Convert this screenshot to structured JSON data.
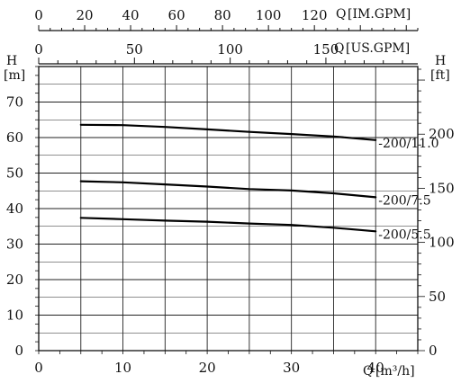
{
  "chart_data": {
    "type": "line",
    "x_axis": {
      "label": "Q",
      "unit": "[m³/h]",
      "range": [
        0,
        45
      ],
      "ticks": [
        "0",
        "10",
        "20",
        "30",
        "40"
      ],
      "tick_values": [
        0,
        10,
        20,
        30,
        40
      ]
    },
    "y_axis_left": {
      "label": "H",
      "unit": "[m]",
      "range": [
        0,
        80
      ],
      "ticks": [
        "0",
        "10",
        "20",
        "30",
        "40",
        "50",
        "60",
        "70"
      ],
      "tick_values": [
        0,
        10,
        20,
        30,
        40,
        50,
        60,
        70
      ]
    },
    "y_axis_right": {
      "label": "H",
      "unit": "[ft]",
      "range": [
        0,
        262.5
      ],
      "ticks": [
        "0",
        "50",
        "100",
        "150",
        "200"
      ],
      "tick_values": [
        0,
        50,
        100,
        150,
        200
      ]
    },
    "top_axis_im": {
      "label": "Q",
      "unit": "[IM.GPM]",
      "range": [
        0,
        165
      ],
      "ticks": [
        "0",
        "20",
        "40",
        "60",
        "80",
        "100",
        "120"
      ],
      "tick_values": [
        0,
        20,
        40,
        60,
        80,
        100,
        120
      ]
    },
    "top_axis_us": {
      "label": "Q",
      "unit": "[US.GPM]",
      "range": [
        0,
        198
      ],
      "ticks": [
        "0",
        "50",
        "100",
        "150"
      ],
      "tick_values": [
        0,
        50,
        100,
        150
      ]
    },
    "grid": true,
    "series": [
      {
        "name": "-200/11.0",
        "x": [
          5,
          10,
          15,
          20,
          25,
          30,
          35,
          40
        ],
        "y": [
          63.6,
          63.5,
          63.0,
          62.3,
          61.6,
          61.0,
          60.3,
          59.3
        ]
      },
      {
        "name": "-200/7.5",
        "x": [
          5,
          10,
          15,
          20,
          25,
          30,
          35,
          40
        ],
        "y": [
          47.7,
          47.4,
          46.8,
          46.2,
          45.5,
          45.1,
          44.3,
          43.2
        ]
      },
      {
        "name": "-200/5.5",
        "x": [
          5,
          10,
          15,
          20,
          25,
          30,
          35,
          40
        ],
        "y": [
          37.4,
          37.0,
          36.6,
          36.3,
          35.8,
          35.4,
          34.6,
          33.6
        ]
      }
    ]
  }
}
